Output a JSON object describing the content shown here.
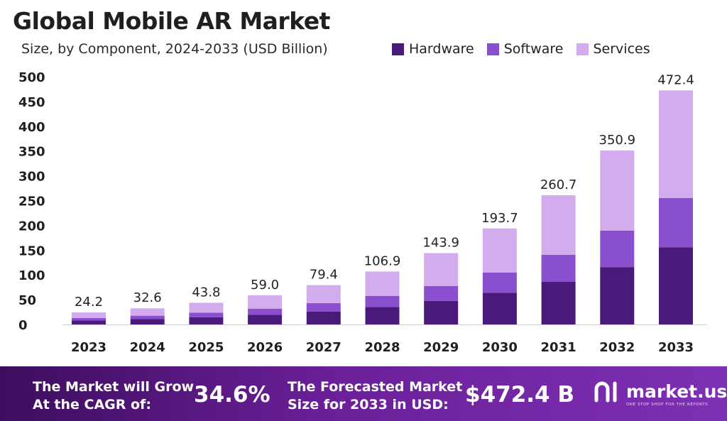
{
  "header": {
    "title": "Global Mobile AR Market",
    "subtitle": "Size, by Component, 2024-2033 (USD Billion)"
  },
  "chart_data": {
    "type": "bar",
    "stacked": true,
    "categories": [
      "2023",
      "2024",
      "2025",
      "2026",
      "2027",
      "2028",
      "2029",
      "2030",
      "2031",
      "2032",
      "2033"
    ],
    "series": [
      {
        "name": "Hardware",
        "color": "#4a1a7a",
        "values": [
          8.0,
          10.8,
          14.5,
          19.5,
          26.2,
          35.3,
          47.5,
          63.9,
          86.0,
          115.8,
          155.9
        ]
      },
      {
        "name": "Software",
        "color": "#8a4fcf",
        "values": [
          5.1,
          6.9,
          9.2,
          12.4,
          16.7,
          22.4,
          30.2,
          40.7,
          54.7,
          73.7,
          99.2
        ]
      },
      {
        "name": "Services",
        "color": "#d3acee",
        "values": [
          11.1,
          14.9,
          20.1,
          27.1,
          36.5,
          49.2,
          66.2,
          89.1,
          120.0,
          161.4,
          217.3
        ]
      }
    ],
    "totals": [
      "24.2",
      "32.6",
      "43.8",
      "59.0",
      "79.4",
      "106.9",
      "143.9",
      "193.7",
      "260.7",
      "350.9",
      "472.4"
    ],
    "yticks": [
      "0",
      "50",
      "100",
      "150",
      "200",
      "250",
      "300",
      "350",
      "400",
      "450",
      "500"
    ],
    "ylim": [
      0,
      500
    ],
    "grid": false,
    "legend_position": "top-right"
  },
  "footer": {
    "cagr_line1": "The Market will Grow",
    "cagr_line2": "At the CAGR of:",
    "cagr_value": "34.6%",
    "forecast_line1": "The Forecasted Market",
    "forecast_line2": "Size for 2033 in USD:",
    "forecast_value": "$472.4 B",
    "brand_name": "market.us",
    "brand_tagline": "ONE STOP SHOP FOR THE REPORTS"
  }
}
